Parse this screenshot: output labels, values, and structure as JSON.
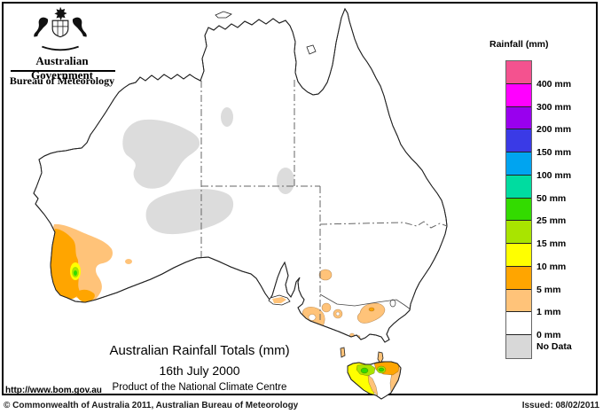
{
  "header": {
    "gov_label": "Australian Government",
    "bureau_label": "Bureau of Meteorology"
  },
  "legend": {
    "title": "Rainfall (mm)",
    "rows": [
      {
        "color": "#F4528F",
        "label": "400 mm"
      },
      {
        "color": "#FF00FF",
        "label": "300 mm"
      },
      {
        "color": "#9900EE",
        "label": "200 mm"
      },
      {
        "color": "#3A3AE6",
        "label": "150 mm"
      },
      {
        "color": "#00A4F0",
        "label": "100 mm"
      },
      {
        "color": "#00DCA0",
        "label": "50 mm"
      },
      {
        "color": "#33DB00",
        "label": "25 mm"
      },
      {
        "color": "#A9E400",
        "label": "15 mm"
      },
      {
        "color": "#FFFF00",
        "label": "10 mm"
      },
      {
        "color": "#FFA500",
        "label": "5 mm"
      },
      {
        "color": "#FFC379",
        "label": "1 mm"
      },
      {
        "color": "#FFFFFF",
        "label": "0 mm"
      },
      {
        "color": "#D8D8D8",
        "label": "No Data"
      }
    ]
  },
  "map": {
    "palette": {
      "land": "#FFFFFF",
      "nodata": "#DCDCDC",
      "sand": "#FFC379",
      "orange": "#FFA500",
      "yellow": "#FFFF00",
      "chartreuse": "#A9E400",
      "green": "#33DB00",
      "white": "#FFFFFF"
    }
  },
  "title_block": {
    "line1": "Australian Rainfall Totals (mm)",
    "line2": "16th July 2000",
    "line3": "Product of the National Climate Centre"
  },
  "footer": {
    "url": "http://www.bom.gov.au",
    "copyright": "© Commonwealth of Australia 2011, Australian Bureau of Meteorology",
    "issued": "Issued: 08/02/2011"
  }
}
